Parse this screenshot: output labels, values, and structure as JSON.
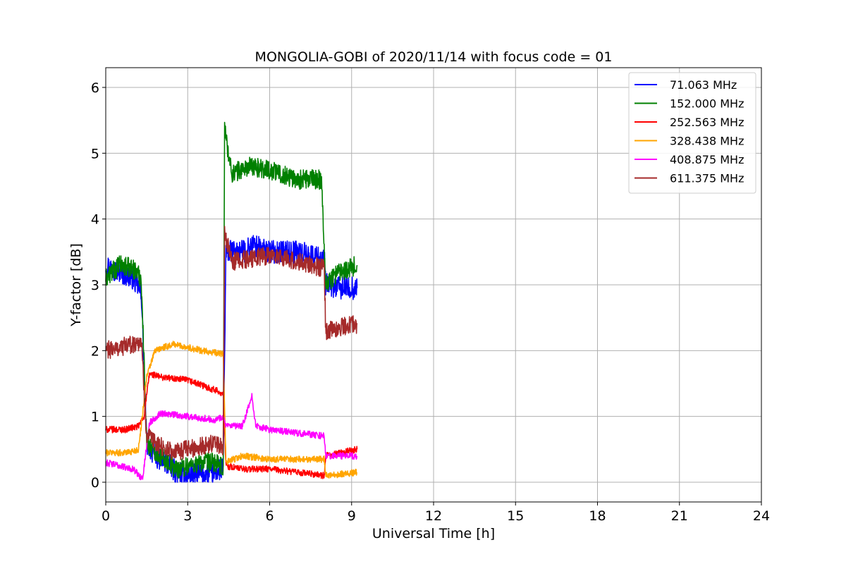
{
  "chart_data": {
    "type": "line",
    "title": "MONGOLIA-GOBI of 2020/11/14 with focus code = 01",
    "xlabel": "Universal Time [h]",
    "ylabel": "Y-factor [dB]",
    "xlim": [
      0,
      24
    ],
    "ylim": [
      -0.3,
      6.3
    ],
    "xticks": [
      0,
      3,
      6,
      9,
      12,
      15,
      18,
      21,
      24
    ],
    "xtick_labels": [
      "0",
      "3",
      "6",
      "9",
      "12",
      "15",
      "18",
      "21",
      "24"
    ],
    "yticks": [
      0,
      1,
      2,
      3,
      4,
      5,
      6
    ],
    "ytick_labels": [
      "0",
      "1",
      "2",
      "3",
      "4",
      "5",
      "6"
    ],
    "grid": true,
    "legend_position": "top-right",
    "series": [
      {
        "name": " 71.063 MHz",
        "color": "#0000ff",
        "noise": 0.35,
        "x": [
          0,
          0.5,
          1.0,
          1.3,
          1.5,
          1.8,
          2.2,
          2.6,
          3.0,
          3.5,
          4.0,
          4.3,
          4.4,
          5.0,
          5.4,
          6.0,
          7.0,
          8.0,
          8.05,
          8.5,
          9.2
        ],
        "values": [
          3.3,
          3.2,
          3.1,
          2.9,
          0.6,
          0.4,
          0.3,
          0.15,
          0.1,
          0.12,
          0.15,
          0.2,
          3.5,
          3.5,
          3.6,
          3.5,
          3.5,
          3.4,
          3.0,
          2.95,
          2.95
        ]
      },
      {
        "name": "152.000 MHz",
        "color": "#008000",
        "noise": 0.3,
        "x": [
          0,
          0.5,
          1.0,
          1.3,
          1.5,
          2.0,
          2.6,
          3.0,
          3.5,
          4.0,
          4.3,
          4.35,
          4.6,
          5.3,
          6.0,
          7.0,
          7.9,
          8.05,
          8.5,
          9.2
        ],
        "values": [
          3.1,
          3.3,
          3.25,
          3.1,
          0.6,
          0.4,
          0.2,
          0.25,
          0.3,
          0.3,
          0.2,
          5.4,
          4.7,
          4.8,
          4.75,
          4.6,
          4.6,
          3.0,
          3.2,
          3.3
        ]
      },
      {
        "name": "252.563 MHz",
        "color": "#ff0000",
        "noise": 0.1,
        "x": [
          0,
          0.7,
          1.2,
          1.4,
          1.6,
          2.0,
          3.0,
          4.0,
          4.3,
          4.4,
          5.0,
          6.0,
          7.0,
          8.0,
          8.05,
          9.2
        ],
        "values": [
          0.8,
          0.8,
          0.85,
          1.0,
          1.65,
          1.6,
          1.55,
          1.4,
          1.35,
          0.25,
          0.2,
          0.2,
          0.15,
          0.1,
          0.4,
          0.5
        ]
      },
      {
        "name": "328.438 MHz",
        "color": "#ffa500",
        "noise": 0.1,
        "x": [
          0,
          0.8,
          1.2,
          1.5,
          1.8,
          2.5,
          3.5,
          4.3,
          4.4,
          5.0,
          6.0,
          7.0,
          8.0,
          8.05,
          9.2
        ],
        "values": [
          0.45,
          0.45,
          0.5,
          1.6,
          2.0,
          2.1,
          2.0,
          1.95,
          0.3,
          0.4,
          0.35,
          0.35,
          0.35,
          0.1,
          0.15
        ]
      },
      {
        "name": "408.875 MHz",
        "color": "#ff00ff",
        "noise": 0.1,
        "x": [
          0,
          0.5,
          1.0,
          1.35,
          1.6,
          2.0,
          3.0,
          4.0,
          4.3,
          4.4,
          5.0,
          5.35,
          5.5,
          6.0,
          7.0,
          8.0,
          8.05,
          9.2
        ],
        "values": [
          0.3,
          0.25,
          0.2,
          0.05,
          0.9,
          1.05,
          1.0,
          0.95,
          1.0,
          0.85,
          0.85,
          1.3,
          0.85,
          0.8,
          0.75,
          0.7,
          0.4,
          0.4
        ]
      },
      {
        "name": "611.375 MHz",
        "color": "#a52a2a",
        "noise": 0.28,
        "x": [
          0,
          0.5,
          1.0,
          1.3,
          1.5,
          2.0,
          2.5,
          3.0,
          3.5,
          4.0,
          4.3,
          4.35,
          4.6,
          5.3,
          6.0,
          7.0,
          8.0,
          8.05,
          8.5,
          9.2
        ],
        "values": [
          2.0,
          2.05,
          2.1,
          2.15,
          0.7,
          0.55,
          0.45,
          0.5,
          0.55,
          0.6,
          0.55,
          3.8,
          3.35,
          3.4,
          3.45,
          3.35,
          3.25,
          2.3,
          2.35,
          2.4
        ]
      }
    ]
  }
}
